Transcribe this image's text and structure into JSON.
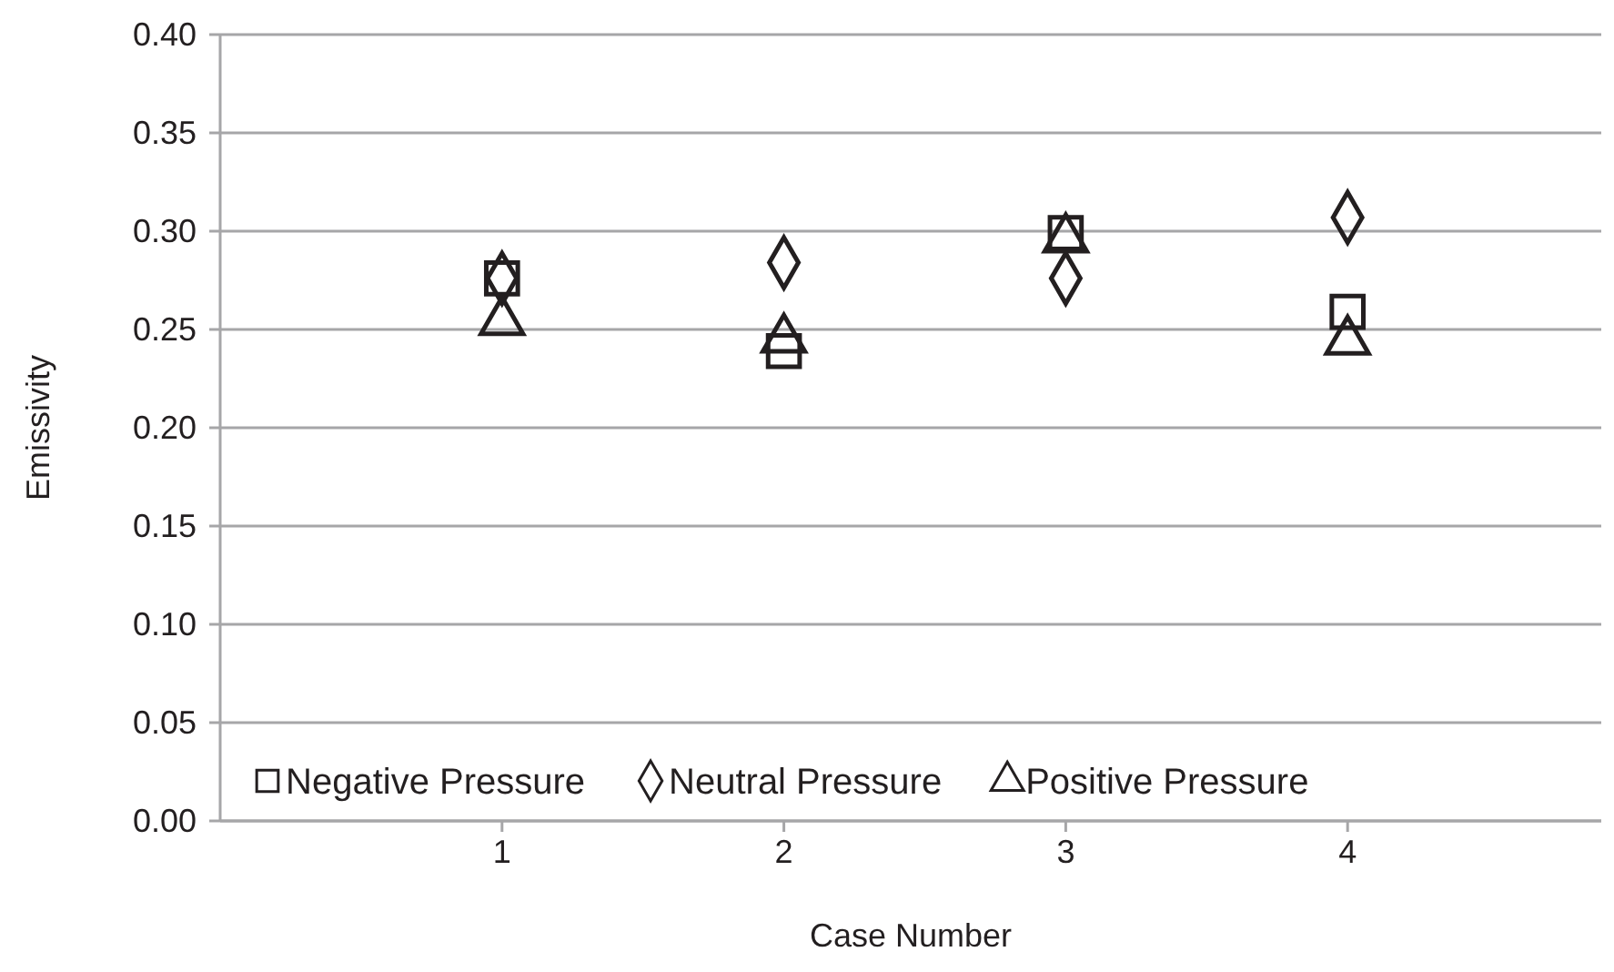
{
  "chart_data": {
    "type": "scatter",
    "xlabel": "Case Number",
    "ylabel": "Emissivity",
    "x": [
      1,
      2,
      3,
      4
    ],
    "xlim": [
      0,
      4.9
    ],
    "xticks": [
      1,
      2,
      3,
      4
    ],
    "ylim": [
      0,
      0.4
    ],
    "yticks": [
      {
        "value": 0,
        "label": "0.00"
      },
      {
        "value": 0.05,
        "label": "0.05"
      },
      {
        "value": 0.1,
        "label": "0.10"
      },
      {
        "value": 0.15,
        "label": "0.15"
      },
      {
        "value": 0.2,
        "label": "0.20"
      },
      {
        "value": 0.25,
        "label": "0.25"
      },
      {
        "value": 0.3,
        "label": "0.30"
      },
      {
        "value": 0.35,
        "label": "0.35"
      },
      {
        "value": 0.4,
        "label": "0.40"
      }
    ],
    "grid": "y",
    "legend": "bottom",
    "series": [
      {
        "name": "Negative Pressure",
        "color": "#231f20",
        "marker": "square",
        "values": [
          0.276,
          0.239,
          0.299,
          0.259
        ]
      },
      {
        "name": "Neutral Pressure",
        "color": "#231f20",
        "marker": "diamond",
        "values": [
          0.276,
          0.284,
          0.276,
          0.307
        ]
      },
      {
        "name": "Positive Pressure",
        "color": "#231f20",
        "marker": "triangle",
        "values": [
          0.254,
          0.245,
          0.296,
          0.244
        ]
      }
    ]
  }
}
